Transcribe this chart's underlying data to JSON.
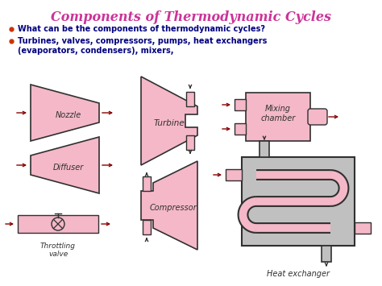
{
  "title": "Components of Thermodynamic Cycles",
  "title_color": "#cc3399",
  "bullet1": "What can be the components of thermodynamic cycles?",
  "bullet2": "Turbines, valves, compressors, pumps, heat exchangers\n(evaporators, condensers), mixers,",
  "bullet_color": "#000080",
  "bullet_dot_color": "#cc3300",
  "bg_color": "#ffffff",
  "pink": "#f4b8c8",
  "gray": "#b0b0b0",
  "dark": "#303030",
  "arrow_color": "#880000",
  "label_color": "#303030"
}
